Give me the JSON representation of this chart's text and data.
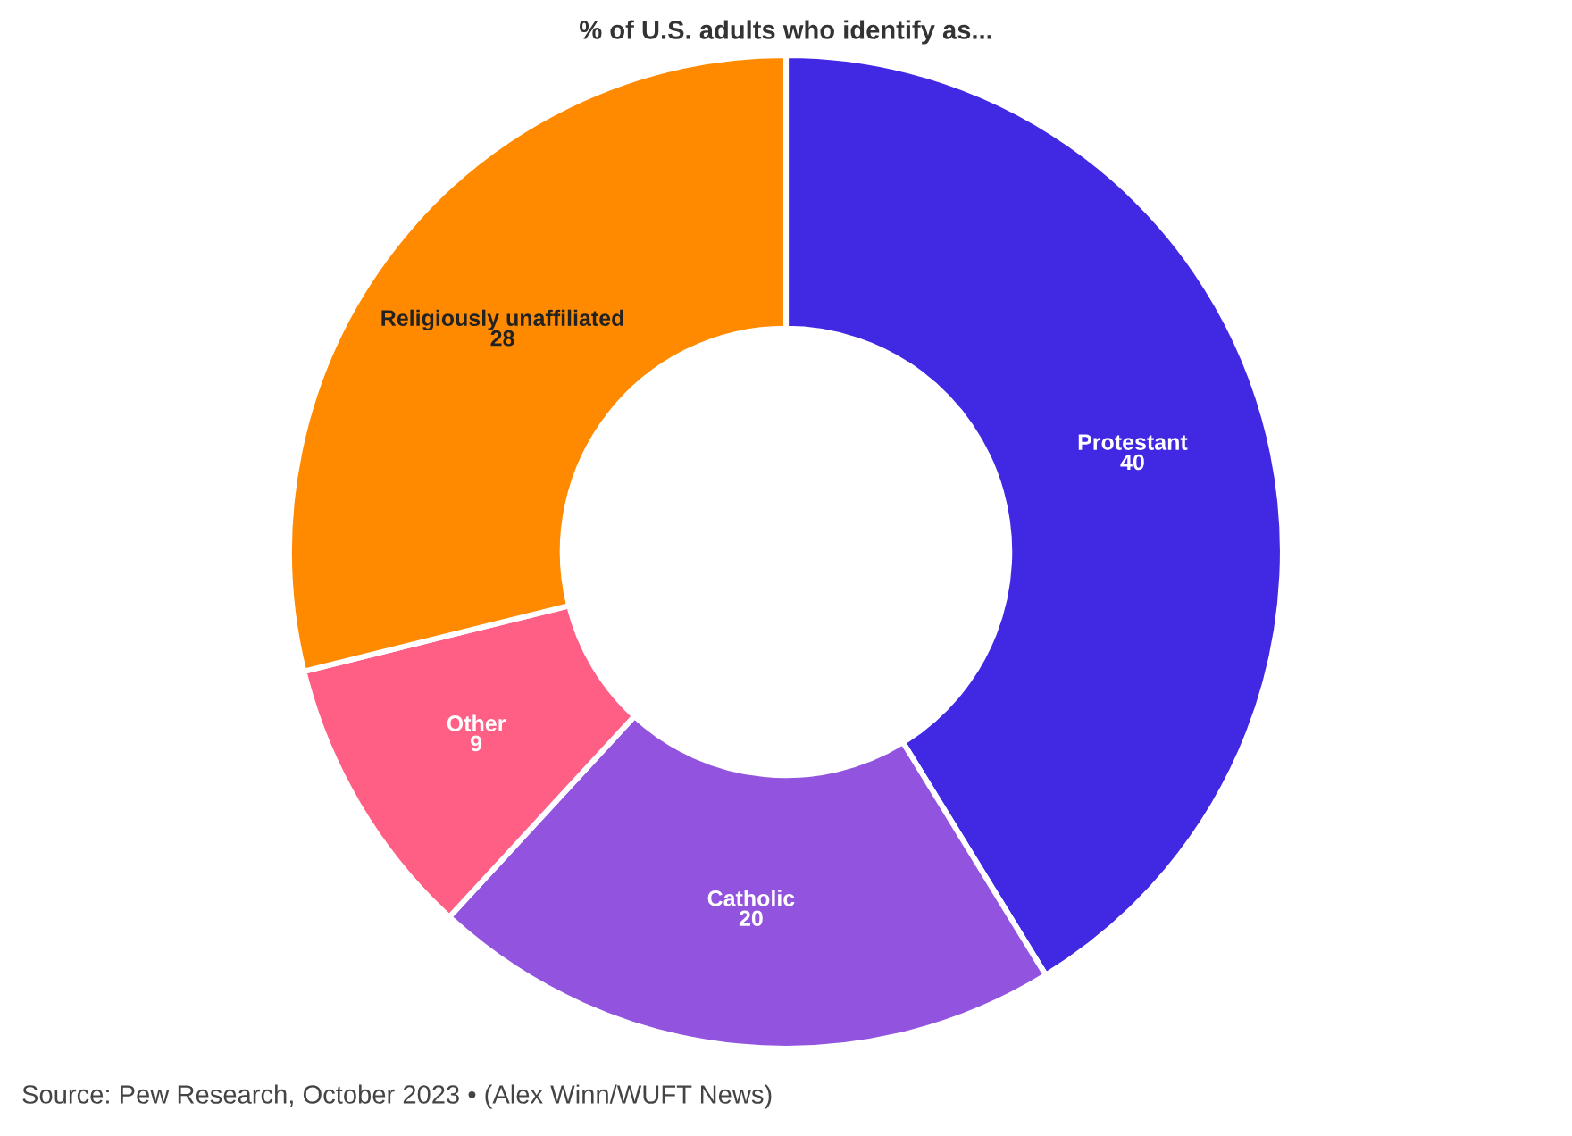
{
  "chart_data": {
    "type": "donut",
    "title": "% of U.S. adults who identify as...",
    "categories": [
      "Protestant",
      "Catholic",
      "Other",
      "Religiously unaffiliated"
    ],
    "values": [
      40,
      20,
      9,
      28
    ],
    "colors": [
      "#4129e3",
      "#9254de",
      "#ff5f85",
      "#ff8a00"
    ],
    "data_labels": true,
    "annotations": [
      "Source: Pew Research, October 2023 • (Alex Winn/WUFT News)"
    ]
  }
}
